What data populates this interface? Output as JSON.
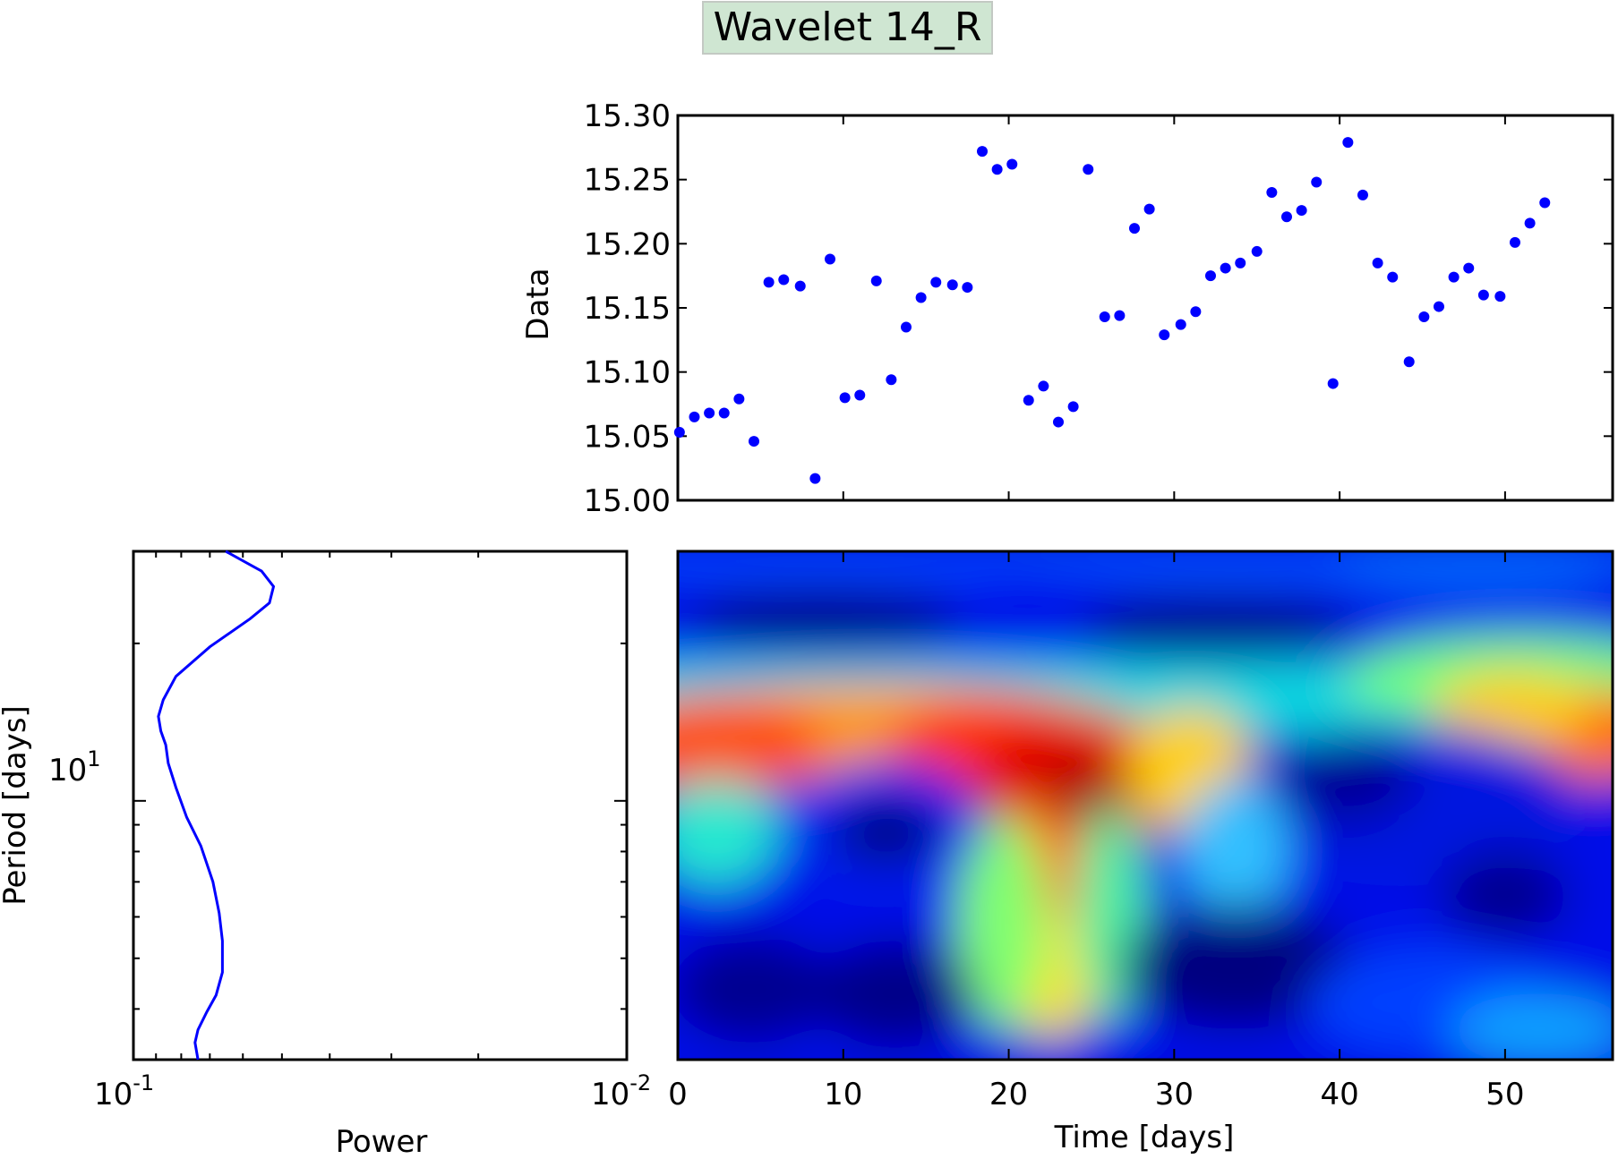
{
  "title": "Wavelet 14_R",
  "chart_data": [
    {
      "type": "scatter",
      "name": "data-panel",
      "ylabel": "Data",
      "xlim": [
        0,
        56.5
      ],
      "ylim": [
        15.0,
        15.3
      ],
      "yticks": [
        "15.00",
        "15.05",
        "15.10",
        "15.15",
        "15.20",
        "15.25",
        "15.30"
      ],
      "marker_color": "#0000ff",
      "x": [
        0.1,
        1.0,
        1.9,
        2.8,
        3.7,
        4.6,
        5.5,
        6.4,
        7.4,
        8.3,
        9.2,
        10.1,
        11.0,
        12.0,
        12.9,
        13.8,
        14.7,
        15.6,
        16.6,
        17.5,
        18.4,
        19.3,
        20.2,
        21.2,
        22.1,
        23.0,
        23.9,
        24.8,
        25.8,
        26.7,
        27.6,
        28.5,
        29.4,
        30.4,
        31.3,
        32.2,
        33.1,
        34.0,
        35.0,
        35.9,
        36.8,
        37.7,
        38.6,
        39.6,
        40.5,
        41.4,
        42.3,
        43.2,
        44.2,
        45.1,
        46.0,
        46.9,
        47.8,
        48.7,
        49.7,
        50.6,
        51.5,
        52.4
      ],
      "y": [
        15.053,
        15.065,
        15.068,
        15.068,
        15.079,
        15.046,
        15.17,
        15.172,
        15.167,
        15.017,
        15.188,
        15.08,
        15.082,
        15.171,
        15.094,
        15.135,
        15.158,
        15.17,
        15.168,
        15.166,
        15.272,
        15.258,
        15.262,
        15.078,
        15.089,
        15.061,
        15.073,
        15.258,
        15.143,
        15.144,
        15.212,
        15.227,
        15.129,
        15.137,
        15.147,
        15.175,
        15.181,
        15.185,
        15.194,
        15.24,
        15.221,
        15.226,
        15.248,
        15.091,
        15.279,
        15.238,
        15.185,
        15.174,
        15.108,
        15.143,
        15.151,
        15.174,
        15.181,
        15.16,
        15.159,
        15.201,
        15.216,
        15.232
      ]
    },
    {
      "type": "line",
      "name": "global-power",
      "xlabel": "Power",
      "ylabel": "Period [days]",
      "xscale": "log",
      "x_inverted": true,
      "xlim": [
        0.1,
        0.01
      ],
      "yscale": "log",
      "ylim": [
        3.2,
        30
      ],
      "xticks": [
        {
          "base": "10",
          "exp": "-1"
        },
        {
          "base": "10",
          "exp": "-2"
        }
      ],
      "yticks": [
        {
          "base": "10",
          "exp": "1"
        }
      ],
      "line_color": "#0000ff",
      "power": [
        0.065,
        0.055,
        0.052,
        0.053,
        0.058,
        0.07,
        0.082,
        0.087,
        0.089,
        0.088,
        0.086,
        0.085,
        0.082,
        0.078,
        0.073,
        0.069,
        0.067,
        0.066,
        0.066,
        0.068,
        0.071,
        0.074,
        0.075,
        0.074
      ],
      "period": [
        30,
        27.5,
        25.7,
        23.9,
        22.3,
        19.7,
        17.3,
        15.6,
        14.5,
        13.6,
        12.8,
        11.8,
        10.6,
        9.3,
        8.2,
        7.0,
        6.1,
        5.4,
        4.7,
        4.25,
        3.95,
        3.65,
        3.45,
        3.2
      ]
    },
    {
      "type": "heatmap",
      "name": "wavelet-power",
      "xlabel": "Time [days]",
      "xlim": [
        0,
        56.5
      ],
      "xticks": [
        "0",
        "10",
        "20",
        "30",
        "40",
        "50"
      ],
      "yscale": "log",
      "ylim": [
        3.2,
        30
      ],
      "colormap": "jet"
    }
  ]
}
